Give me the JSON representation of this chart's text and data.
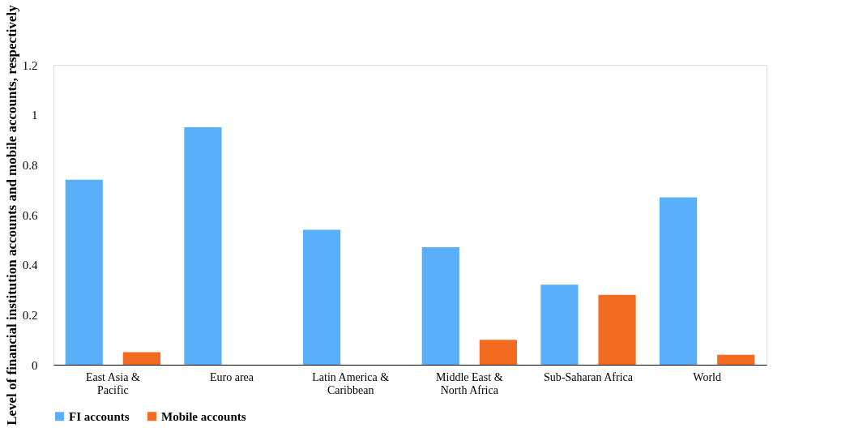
{
  "chart_data": {
    "type": "bar",
    "ylabel": "Level of financial institution accounts and mobile accounts, respectively",
    "categories": [
      "East Asia & Pacific",
      "Euro area",
      "Latin America & Caribbean",
      "Middle East & North Africa",
      "Sub-Saharan Africa",
      "World"
    ],
    "series": [
      {
        "name": "FI accounts",
        "color": "#5aaffa",
        "values": [
          0.74,
          0.95,
          0.54,
          0.47,
          0.32,
          0.67
        ]
      },
      {
        "name": "Mobile accounts",
        "color": "#f26b21",
        "values": [
          0.05,
          null,
          null,
          0.1,
          0.28,
          0.04
        ]
      }
    ],
    "ylim": [
      0,
      1.2
    ],
    "yticks": [
      0,
      0.2,
      0.4,
      0.6,
      0.8,
      1,
      1.2
    ],
    "grid": false,
    "legend": "bottom"
  }
}
